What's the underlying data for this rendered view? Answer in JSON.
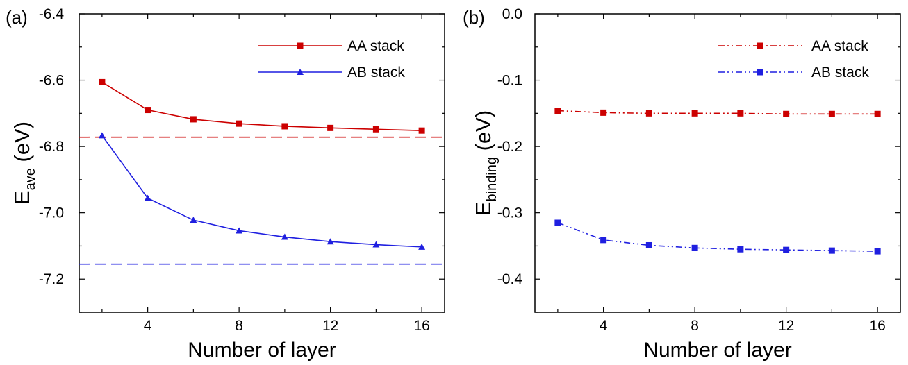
{
  "chart_data": [
    {
      "panel_label": "(a)",
      "type": "line",
      "xlabel": "Number of layer",
      "ylabel_main": "E",
      "ylabel_sub": "ave",
      "ylabel_unit": " (eV)",
      "xlim": [
        1,
        17
      ],
      "ylim": [
        -7.3,
        -6.4
      ],
      "xticks": [
        4,
        8,
        12,
        16
      ],
      "yticks": [
        -6.4,
        -6.6,
        -6.8,
        -7.0,
        -7.2
      ],
      "ytick_labels": [
        "-6.4",
        "-6.6",
        "-6.8",
        "-7.0",
        "-7.2"
      ],
      "grid": false,
      "legend_position": "top-right",
      "x": [
        2,
        4,
        6,
        8,
        10,
        12,
        14,
        16
      ],
      "series": [
        {
          "name": "AA stack",
          "color": "#cc0000",
          "marker": "square",
          "line": "solid",
          "values": [
            -6.606,
            -6.69,
            -6.718,
            -6.731,
            -6.739,
            -6.744,
            -6.748,
            -6.752
          ]
        },
        {
          "name": "AB stack",
          "color": "#1f1fe0",
          "marker": "triangle",
          "line": "solid",
          "values": [
            -6.767,
            -6.956,
            -7.022,
            -7.054,
            -7.073,
            -7.087,
            -7.096,
            -7.103
          ]
        }
      ],
      "reference_lines": [
        {
          "y": -6.772,
          "color": "#cc0000",
          "style": "dashed"
        },
        {
          "y": -7.155,
          "color": "#1f1fe0",
          "style": "dashed"
        }
      ]
    },
    {
      "panel_label": "(b)",
      "type": "line",
      "xlabel": "Number of layer",
      "ylabel_main": "E",
      "ylabel_sub": "binding",
      "ylabel_unit": " (eV)",
      "xlim": [
        1,
        17
      ],
      "ylim": [
        -0.45,
        0.0
      ],
      "xticks": [
        4,
        8,
        12,
        16
      ],
      "yticks": [
        0.0,
        -0.1,
        -0.2,
        -0.3,
        -0.4
      ],
      "ytick_labels": [
        "0.0",
        "-0.1",
        "-0.2",
        "-0.3",
        "-0.4"
      ],
      "grid": false,
      "legend_position": "top-right",
      "x": [
        2,
        4,
        6,
        8,
        10,
        12,
        14,
        16
      ],
      "series": [
        {
          "name": "AA stack",
          "color": "#cc0000",
          "marker": "square",
          "line": "dash-dot",
          "values": [
            -0.146,
            -0.149,
            -0.15,
            -0.15,
            -0.15,
            -0.151,
            -0.151,
            -0.151
          ]
        },
        {
          "name": "AB stack",
          "color": "#1f1fe0",
          "marker": "square",
          "line": "dash-dot",
          "values": [
            -0.315,
            -0.341,
            -0.349,
            -0.353,
            -0.355,
            -0.356,
            -0.357,
            -0.358
          ]
        }
      ]
    }
  ]
}
